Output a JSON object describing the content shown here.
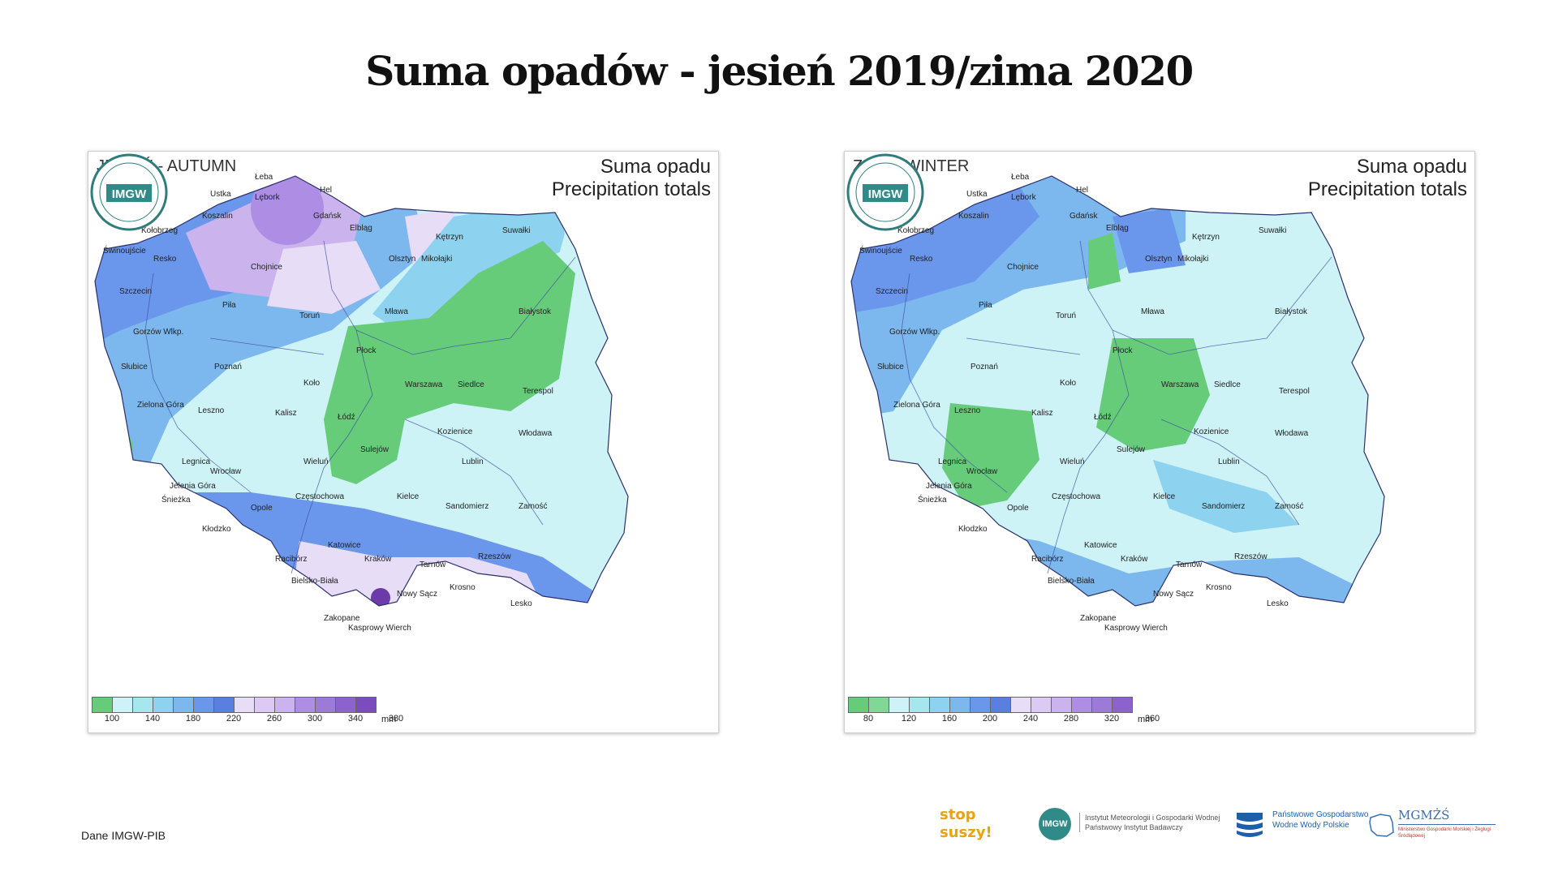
{
  "title": "Suma opadów - jesień 2019/zima 2020",
  "source": "Dane IMGW-PIB",
  "heading": {
    "line1": "Suma opadu",
    "line2": "Precipitation totals"
  },
  "logo_text": "IMGW",
  "colors": {
    "green": "#66cc7a",
    "cyan_light": "#cdf3f6",
    "cyan": "#a8e6ee",
    "sky": "#8dd3f0",
    "blue_light": "#7cb8ee",
    "blue": "#6a96ec",
    "blue_dark": "#5b7fe0",
    "lavender": "#e8ddf7",
    "violet_light": "#cbb4ee",
    "violet": "#ad8ee4",
    "violet_dark": "#6d3aa9"
  },
  "panels": [
    {
      "season_label": "JESIEŃ - AUTUMN",
      "year": "2019",
      "legend": {
        "colors": [
          "#66cc7a",
          "#cdf3f6",
          "#a8e6ee",
          "#8dd3f0",
          "#7cb8ee",
          "#6a96ec",
          "#5b7fe0",
          "#e8ddf7",
          "#dcc9f4",
          "#cbb4ee",
          "#ad8ee4",
          "#9b7ad8",
          "#8c63cc",
          "#7a4cbd",
          "#6d3aa9",
          "#4a2586"
        ],
        "ticks": [
          "100",
          "140",
          "180",
          "220",
          "260",
          "300",
          "340",
          "380"
        ],
        "unit": "mm"
      }
    },
    {
      "season_label": "ZIMA - WINTER",
      "year": "2020",
      "legend": {
        "colors": [
          "#66cc7a",
          "#7fd895",
          "#cdf3f6",
          "#a8e6ee",
          "#8dd3f0",
          "#7cb8ee",
          "#6a96ec",
          "#5b7fe0",
          "#e8ddf7",
          "#dcc9f4",
          "#cbb4ee",
          "#ad8ee4",
          "#9b7ad8",
          "#8c63cc",
          "#7a4cbd",
          "#4a2586"
        ],
        "ticks": [
          "80",
          "120",
          "160",
          "200",
          "240",
          "280",
          "320",
          "360"
        ],
        "unit": "mm"
      }
    }
  ],
  "cities": [
    "Łeba",
    "Hel",
    "Ustka",
    "Lębork",
    "Gdańsk",
    "Koszalin",
    "Elbląg",
    "Kołobrzeg",
    "Kętrzyn",
    "Suwałki",
    "Świnoujście",
    "Resko",
    "Olsztyn",
    "Mikołajki",
    "Chojnice",
    "Szczecin",
    "Piła",
    "Mława",
    "Białystok",
    "Toruń",
    "Gorzów Wlkp.",
    "Płock",
    "Słubice",
    "Poznań",
    "Koło",
    "Warszawa",
    "Siedlce",
    "Terespol",
    "Zielona Góra",
    "Leszno",
    "Kalisz",
    "Łódź",
    "Kozienice",
    "Włodawa",
    "Sulejów",
    "Legnica",
    "Wieluń",
    "Lublin",
    "Wrocław",
    "Jelenia Góra",
    "Śnieżka",
    "Częstochowa",
    "Kielce",
    "Sandomierz",
    "Zamość",
    "Opole",
    "Kłodzko",
    "Katowice",
    "Racibórz",
    "Kraków",
    "Tarnów",
    "Rzeszów",
    "Bielsko-Biała",
    "Nowy Sącz",
    "Krosno",
    "Lesko",
    "Zakopane",
    "Kasprowy Wierch"
  ],
  "partners": {
    "stop_suszy": [
      "stop",
      "suszy!"
    ],
    "imgw_text": "Instytut Meteorologii i Gospodarki Wodnej Państwowy Instytut Badawczy",
    "wody_polskie": "Państwowe Gospodarstwo Wodne Wody Polskie",
    "mgmzs": "MGMŻŚ",
    "mgmzs_sub": "Ministerstwo Gospodarki Morskiej i Żeglugi Śródlądowej"
  }
}
